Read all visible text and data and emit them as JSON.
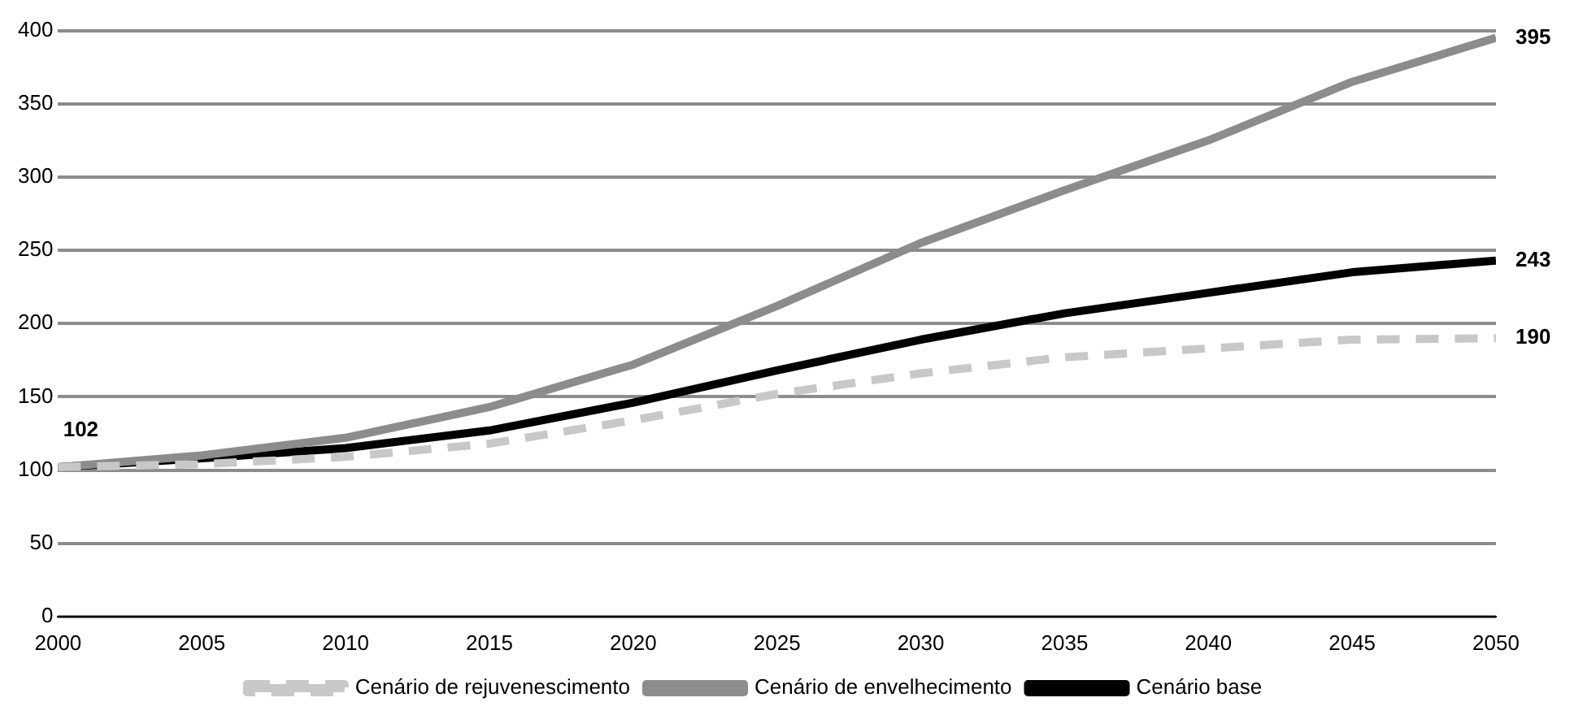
{
  "chart_data": {
    "type": "line",
    "x": [
      2000,
      2005,
      2010,
      2015,
      2020,
      2025,
      2030,
      2035,
      2040,
      2045,
      2050
    ],
    "series": [
      {
        "name": "Cenário de rejuvenescimento",
        "color": "#c8c8c8",
        "line_style": "dashed",
        "values": [
          102,
          104,
          109,
          118,
          134,
          152,
          166,
          177,
          183,
          189,
          190
        ],
        "value_labels": [
          null,
          null,
          null,
          null,
          null,
          null,
          null,
          null,
          null,
          null,
          "190"
        ]
      },
      {
        "name": "Cenário de envelhecimento",
        "color": "#8c8c8c",
        "line_style": "solid",
        "values": [
          102,
          110,
          122,
          143,
          172,
          212,
          255,
          291,
          325,
          365,
          395
        ],
        "value_labels": [
          null,
          null,
          null,
          null,
          null,
          null,
          null,
          null,
          null,
          null,
          "395"
        ]
      },
      {
        "name": "Cenário base",
        "color": "#000000",
        "line_style": "solid",
        "values": [
          102,
          108,
          115,
          127,
          146,
          168,
          189,
          207,
          221,
          235,
          243
        ],
        "value_labels": [
          "102",
          null,
          null,
          null,
          null,
          null,
          null,
          null,
          null,
          null,
          "243"
        ]
      }
    ],
    "xlim": [
      2000,
      2050
    ],
    "xticks": [
      2000,
      2005,
      2010,
      2015,
      2020,
      2025,
      2030,
      2035,
      2040,
      2045,
      2050
    ],
    "ylim": [
      0,
      400
    ],
    "yticks": [
      0,
      50,
      100,
      150,
      200,
      250,
      300,
      350,
      400
    ],
    "grid": "y",
    "legend": "bottom",
    "marker": "none"
  }
}
